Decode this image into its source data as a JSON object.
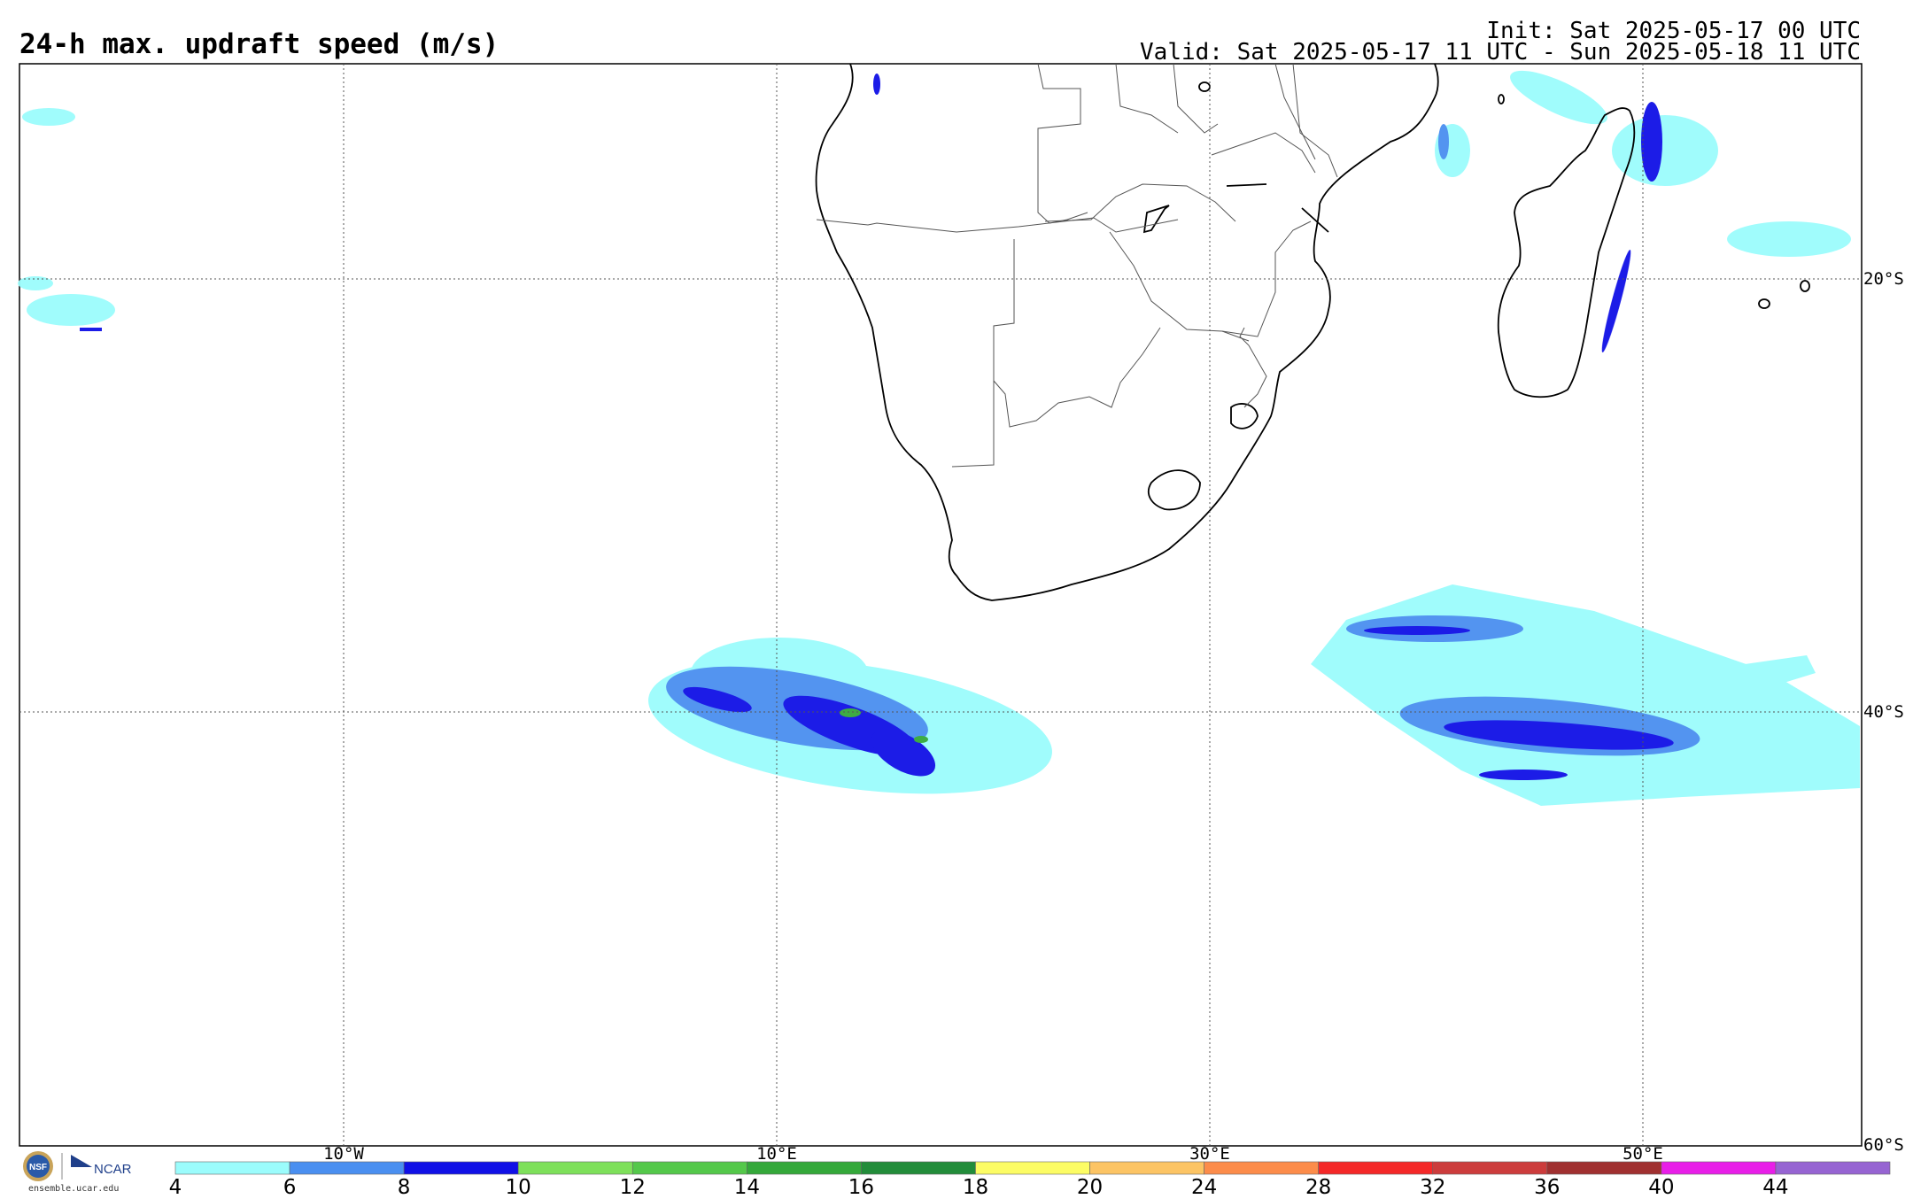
{
  "header": {
    "title": "24-h max. updraft speed (m/s)",
    "init": "Init: Sat 2025-05-17 00 UTC",
    "valid": "Valid: Sat 2025-05-17 11 UTC - Sun 2025-05-18 11 UTC"
  },
  "grid": {
    "lon_labels": [
      "10°W",
      "10°E",
      "30°E",
      "50°E"
    ],
    "lat_labels": [
      "20°S",
      "40°S",
      "60°S"
    ]
  },
  "colorbar": {
    "ticks": [
      "4",
      "6",
      "8",
      "10",
      "12",
      "14",
      "16",
      "18",
      "20",
      "24",
      "28",
      "32",
      "36",
      "40",
      "44"
    ],
    "colors": [
      "#9bfcfc",
      "#4a8ff0",
      "#1010e6",
      "#7ee05a",
      "#54c84a",
      "#34a83a",
      "#228c3a",
      "#fcfc64",
      "#fcc464",
      "#fc8c4a",
      "#f42828",
      "#cc3c3c",
      "#a03030",
      "#e81ee8",
      "#9664d2"
    ]
  },
  "branding": {
    "nsf": "NSF",
    "ncar": "NCAR",
    "url": "ensemble.ucar.edu"
  }
}
